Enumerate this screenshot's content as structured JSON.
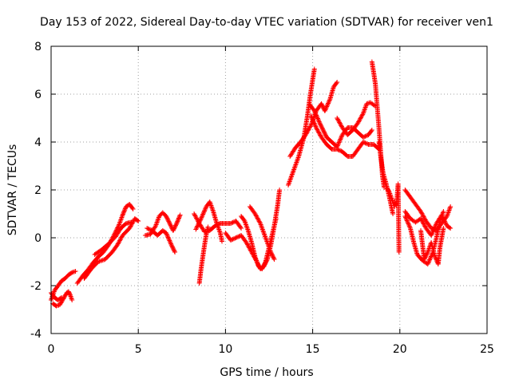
{
  "chart_data": {
    "type": "scatter",
    "title": "Day 153 of 2022, Sidereal Day-to-day VTEC variation (SDTVAR) for receiver ven1",
    "xlabel": "GPS time / hours",
    "ylabel": "SDTVAR / TECUs",
    "xlim": [
      0,
      25
    ],
    "ylim": [
      -4,
      8
    ],
    "xticks": [
      0,
      5,
      10,
      15,
      20,
      25
    ],
    "yticks": [
      -4,
      -2,
      0,
      2,
      4,
      6,
      8
    ],
    "grid": true,
    "marker": "+",
    "series": [
      {
        "name": "SDTVAR",
        "color": "#ff0000",
        "tracks": [
          [
            [
              0.0,
              -2.6
            ],
            [
              0.2,
              -2.2
            ],
            [
              0.4,
              -2.0
            ],
            [
              0.6,
              -1.8
            ],
            [
              0.8,
              -1.7
            ],
            [
              1.0,
              -1.55
            ],
            [
              1.2,
              -1.45
            ],
            [
              1.4,
              -1.4
            ]
          ],
          [
            [
              0.1,
              -2.75
            ],
            [
              0.3,
              -2.85
            ],
            [
              0.5,
              -2.8
            ],
            [
              0.7,
              -2.55
            ],
            [
              0.9,
              -2.3
            ],
            [
              1.0,
              -2.25
            ],
            [
              1.1,
              -2.4
            ],
            [
              1.2,
              -2.6
            ]
          ],
          [
            [
              0.0,
              -2.3
            ],
            [
              0.2,
              -2.5
            ],
            [
              0.4,
              -2.6
            ],
            [
              0.6,
              -2.5
            ]
          ],
          [
            [
              1.5,
              -1.9
            ],
            [
              1.8,
              -1.6
            ],
            [
              2.1,
              -1.35
            ],
            [
              2.4,
              -1.05
            ],
            [
              2.7,
              -0.8
            ],
            [
              3.0,
              -0.6
            ],
            [
              3.3,
              -0.3
            ],
            [
              3.6,
              0.1
            ],
            [
              3.9,
              0.55
            ],
            [
              4.1,
              0.95
            ],
            [
              4.3,
              1.3
            ],
            [
              4.5,
              1.4
            ],
            [
              4.7,
              1.2
            ]
          ],
          [
            [
              1.9,
              -1.7
            ],
            [
              2.3,
              -1.3
            ],
            [
              2.7,
              -1.0
            ],
            [
              3.1,
              -0.9
            ],
            [
              3.5,
              -0.6
            ],
            [
              3.8,
              -0.3
            ],
            [
              4.1,
              0.1
            ],
            [
              4.5,
              0.4
            ],
            [
              4.8,
              0.8
            ],
            [
              5.0,
              0.7
            ]
          ],
          [
            [
              2.5,
              -0.7
            ],
            [
              2.9,
              -0.5
            ],
            [
              3.3,
              -0.25
            ],
            [
              3.7,
              0.05
            ],
            [
              4.0,
              0.4
            ],
            [
              4.3,
              0.6
            ],
            [
              4.6,
              0.65
            ]
          ],
          [
            [
              5.4,
              0.1
            ],
            [
              5.7,
              0.15
            ],
            [
              6.0,
              0.5
            ],
            [
              6.2,
              0.9
            ],
            [
              6.4,
              1.05
            ],
            [
              6.6,
              0.9
            ],
            [
              6.8,
              0.6
            ],
            [
              7.0,
              0.3
            ],
            [
              7.2,
              0.6
            ],
            [
              7.4,
              0.95
            ]
          ],
          [
            [
              5.5,
              0.4
            ],
            [
              5.8,
              0.3
            ],
            [
              6.1,
              0.1
            ],
            [
              6.4,
              0.3
            ],
            [
              6.6,
              0.2
            ],
            [
              6.9,
              -0.3
            ],
            [
              7.1,
              -0.6
            ]
          ],
          [
            [
              8.5,
              -1.9
            ],
            [
              8.6,
              -1.3
            ],
            [
              8.7,
              -0.8
            ],
            [
              8.8,
              -0.3
            ],
            [
              8.9,
              0.15
            ],
            [
              9.0,
              0.45
            ]
          ],
          [
            [
              8.3,
              0.35
            ],
            [
              8.6,
              0.8
            ],
            [
              8.9,
              1.3
            ],
            [
              9.1,
              1.5
            ],
            [
              9.3,
              1.1
            ],
            [
              9.5,
              0.6
            ],
            [
              9.7,
              0.2
            ],
            [
              9.8,
              -0.15
            ]
          ],
          [
            [
              8.2,
              1.0
            ],
            [
              8.5,
              0.6
            ],
            [
              8.8,
              0.25
            ],
            [
              9.1,
              0.3
            ],
            [
              9.4,
              0.5
            ],
            [
              9.7,
              0.6
            ]
          ],
          [
            [
              9.7,
              0.6
            ],
            [
              10.0,
              0.6
            ],
            [
              10.3,
              0.6
            ],
            [
              10.6,
              0.7
            ],
            [
              10.9,
              0.4
            ]
          ],
          [
            [
              10.0,
              0.2
            ],
            [
              10.3,
              -0.1
            ],
            [
              10.6,
              0.0
            ],
            [
              10.9,
              0.1
            ],
            [
              11.2,
              -0.2
            ],
            [
              11.5,
              -0.6
            ],
            [
              11.8,
              -1.0
            ],
            [
              12.0,
              -1.3
            ],
            [
              12.2,
              -1.2
            ],
            [
              12.4,
              -0.9
            ],
            [
              12.6,
              -0.3
            ],
            [
              12.8,
              0.5
            ],
            [
              13.0,
              1.4
            ],
            [
              13.1,
              2.0
            ]
          ],
          [
            [
              10.9,
              0.9
            ],
            [
              11.1,
              0.7
            ],
            [
              11.3,
              0.3
            ],
            [
              11.5,
              -0.2
            ],
            [
              11.7,
              -0.8
            ],
            [
              11.9,
              -1.2
            ],
            [
              12.1,
              -1.3
            ],
            [
              12.3,
              -1.0
            ],
            [
              12.5,
              -0.4
            ],
            [
              12.7,
              0.2
            ],
            [
              12.9,
              0.8
            ]
          ],
          [
            [
              11.4,
              1.3
            ],
            [
              11.7,
              1.0
            ],
            [
              12.0,
              0.6
            ],
            [
              12.3,
              0.0
            ],
            [
              12.6,
              -0.6
            ],
            [
              12.8,
              -0.9
            ]
          ],
          [
            [
              13.6,
              2.2
            ],
            [
              13.9,
              2.8
            ],
            [
              14.2,
              3.4
            ],
            [
              14.5,
              4.2
            ],
            [
              14.7,
              5.1
            ],
            [
              14.85,
              5.9
            ],
            [
              15.0,
              6.6
            ],
            [
              15.1,
              7.05
            ]
          ],
          [
            [
              13.7,
              3.4
            ],
            [
              14.0,
              3.75
            ],
            [
              14.3,
              4.0
            ],
            [
              14.6,
              4.3
            ],
            [
              14.9,
              4.7
            ],
            [
              15.2,
              5.3
            ],
            [
              15.5,
              5.6
            ],
            [
              15.7,
              5.3
            ],
            [
              16.0,
              5.8
            ],
            [
              16.2,
              6.3
            ],
            [
              16.4,
              6.5
            ]
          ],
          [
            [
              14.8,
              5.6
            ],
            [
              15.1,
              5.3
            ],
            [
              15.4,
              4.8
            ],
            [
              15.6,
              4.5
            ],
            [
              15.8,
              4.2
            ],
            [
              16.1,
              4.0
            ],
            [
              16.4,
              3.8
            ],
            [
              16.7,
              4.3
            ],
            [
              17.0,
              4.6
            ],
            [
              17.3,
              4.6
            ],
            [
              17.6,
              4.4
            ],
            [
              17.9,
              4.2
            ],
            [
              18.2,
              4.3
            ],
            [
              18.4,
              4.5
            ]
          ],
          [
            [
              14.9,
              5.1
            ],
            [
              15.2,
              4.6
            ],
            [
              15.5,
              4.2
            ],
            [
              15.8,
              3.9
            ],
            [
              16.1,
              3.7
            ],
            [
              16.4,
              3.7
            ],
            [
              16.7,
              3.6
            ],
            [
              17.0,
              3.4
            ],
            [
              17.3,
              3.4
            ],
            [
              17.6,
              3.7
            ],
            [
              17.9,
              4.0
            ],
            [
              18.2,
              3.9
            ],
            [
              18.5,
              3.9
            ],
            [
              18.8,
              3.7
            ]
          ],
          [
            [
              16.4,
              5.0
            ],
            [
              16.7,
              4.6
            ],
            [
              17.0,
              4.3
            ],
            [
              17.3,
              4.5
            ],
            [
              17.6,
              4.8
            ],
            [
              17.9,
              5.2
            ],
            [
              18.1,
              5.6
            ],
            [
              18.3,
              5.65
            ],
            [
              18.6,
              5.5
            ]
          ],
          [
            [
              18.4,
              7.35
            ],
            [
              18.5,
              6.9
            ],
            [
              18.6,
              6.4
            ],
            [
              18.7,
              5.5
            ],
            [
              18.8,
              4.6
            ],
            [
              18.9,
              3.6
            ],
            [
              19.0,
              2.6
            ],
            [
              19.1,
              2.1
            ]
          ],
          [
            [
              18.8,
              4.0
            ],
            [
              18.9,
              3.4
            ],
            [
              19.0,
              2.9
            ],
            [
              19.1,
              2.4
            ],
            [
              19.25,
              2.1
            ],
            [
              19.4,
              1.9
            ],
            [
              19.55,
              1.6
            ],
            [
              19.7,
              1.3
            ]
          ],
          [
            [
              19.0,
              2.8
            ],
            [
              19.2,
              2.3
            ],
            [
              19.4,
              1.7
            ],
            [
              19.6,
              1.0
            ]
          ],
          [
            [
              19.7,
              1.5
            ],
            [
              19.8,
              1.35
            ],
            [
              19.9,
              2.25
            ],
            [
              19.95,
              -0.6
            ]
          ],
          [
            [
              20.3,
              2.0
            ],
            [
              20.6,
              1.7
            ],
            [
              20.9,
              1.4
            ],
            [
              21.2,
              1.1
            ],
            [
              21.5,
              0.7
            ],
            [
              21.8,
              0.4
            ],
            [
              22.1,
              0.3
            ],
            [
              22.4,
              0.6
            ],
            [
              22.7,
              0.9
            ],
            [
              22.9,
              1.3
            ]
          ],
          [
            [
              20.3,
              0.9
            ],
            [
              20.6,
              0.4
            ],
            [
              20.8,
              -0.2
            ],
            [
              21.0,
              -0.7
            ],
            [
              21.3,
              -0.95
            ],
            [
              21.6,
              -1.1
            ],
            [
              21.9,
              -0.6
            ],
            [
              22.1,
              0.0
            ],
            [
              22.3,
              0.7
            ],
            [
              22.5,
              1.1
            ]
          ],
          [
            [
              20.3,
              1.1
            ],
            [
              20.6,
              0.8
            ],
            [
              20.9,
              0.65
            ],
            [
              21.2,
              0.8
            ],
            [
              21.5,
              0.4
            ],
            [
              21.8,
              0.1
            ],
            [
              22.1,
              0.6
            ],
            [
              22.4,
              0.95
            ],
            [
              22.7,
              0.5
            ],
            [
              22.9,
              0.4
            ]
          ],
          [
            [
              21.2,
              0.3
            ],
            [
              21.3,
              -0.3
            ],
            [
              21.4,
              -0.9
            ],
            [
              21.6,
              -0.6
            ],
            [
              21.8,
              -0.2
            ],
            [
              22.0,
              -0.75
            ],
            [
              22.2,
              -1.1
            ],
            [
              22.3,
              -0.4
            ],
            [
              22.5,
              0.4
            ]
          ]
        ]
      }
    ]
  }
}
